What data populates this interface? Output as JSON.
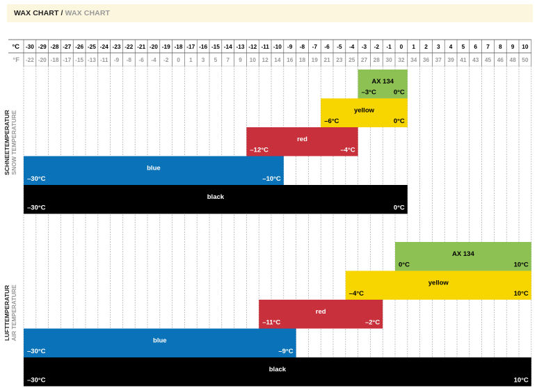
{
  "header": {
    "title": "WAX CHART",
    "separator": " / ",
    "subtitle": "WAX CHART"
  },
  "chart_data": {
    "type": "range-bar",
    "celsius_label": "°C",
    "fahrenheit_label": "°F",
    "celsius_ticks": [
      -30,
      -29,
      -28,
      -27,
      -26,
      -25,
      -24,
      -23,
      -22,
      -21,
      -20,
      -19,
      -18,
      -17,
      -16,
      -15,
      -14,
      -13,
      -12,
      -11,
      -10,
      -9,
      -8,
      -7,
      -6,
      -5,
      -4,
      -3,
      -2,
      -1,
      0,
      1,
      2,
      3,
      4,
      5,
      6,
      7,
      8,
      9,
      10
    ],
    "fahrenheit_ticks": [
      -22,
      -20,
      -18,
      -17,
      -15,
      -13,
      -11,
      -9,
      -8,
      -6,
      -4,
      -2,
      0,
      1,
      3,
      5,
      7,
      9,
      10,
      12,
      14,
      16,
      18,
      19,
      21,
      23,
      25,
      27,
      28,
      30,
      32,
      34,
      36,
      37,
      39,
      41,
      43,
      45,
      46,
      48,
      50
    ],
    "sections": [
      {
        "title": "SCHNEETEMPERATUR",
        "subtitle": "SNOW TEMPERATURE",
        "bars": [
          {
            "name": "AX 134",
            "min": -3,
            "max": 0,
            "min_label": "–3°C",
            "max_label": "0°C",
            "color": "#8dc153",
            "text_color": "#000000"
          },
          {
            "name": "yellow",
            "min": -6,
            "max": 0,
            "min_label": "–6°C",
            "max_label": "0°C",
            "color": "#f7d600",
            "text_color": "#000000"
          },
          {
            "name": "red",
            "min": -12,
            "max": -4,
            "min_label": "–12°C",
            "max_label": "–4°C",
            "color": "#c8303b",
            "text_color": "#ffffff"
          },
          {
            "name": "blue",
            "min": -30,
            "max": -10,
            "min_label": "–30°C",
            "max_label": "–10°C",
            "color": "#0a72b8",
            "text_color": "#ffffff"
          },
          {
            "name": "black",
            "min": -30,
            "max": 0,
            "min_label": "–30°C",
            "max_label": "0°C",
            "color": "#000000",
            "text_color": "#ffffff"
          }
        ]
      },
      {
        "title": "LUFTTEMPERATUR",
        "subtitle": "AIR TEMPERATURE",
        "bars": [
          {
            "name": "AX 134",
            "min": 0,
            "max": 10,
            "min_label": "0°C",
            "max_label": "10°C",
            "color": "#8dc153",
            "text_color": "#000000"
          },
          {
            "name": "yellow",
            "min": -4,
            "max": 10,
            "min_label": "–4°C",
            "max_label": "10°C",
            "color": "#f7d600",
            "text_color": "#000000"
          },
          {
            "name": "red",
            "min": -11,
            "max": -2,
            "min_label": "–11°C",
            "max_label": "–2°C",
            "color": "#c8303b",
            "text_color": "#ffffff"
          },
          {
            "name": "blue",
            "min": -30,
            "max": -9,
            "min_label": "–30°C",
            "max_label": "–9°C",
            "color": "#0a72b8",
            "text_color": "#ffffff"
          },
          {
            "name": "black",
            "min": -30,
            "max": 10,
            "min_label": "–30°C",
            "max_label": "10°C",
            "color": "#000000",
            "text_color": "#ffffff"
          }
        ]
      }
    ]
  }
}
